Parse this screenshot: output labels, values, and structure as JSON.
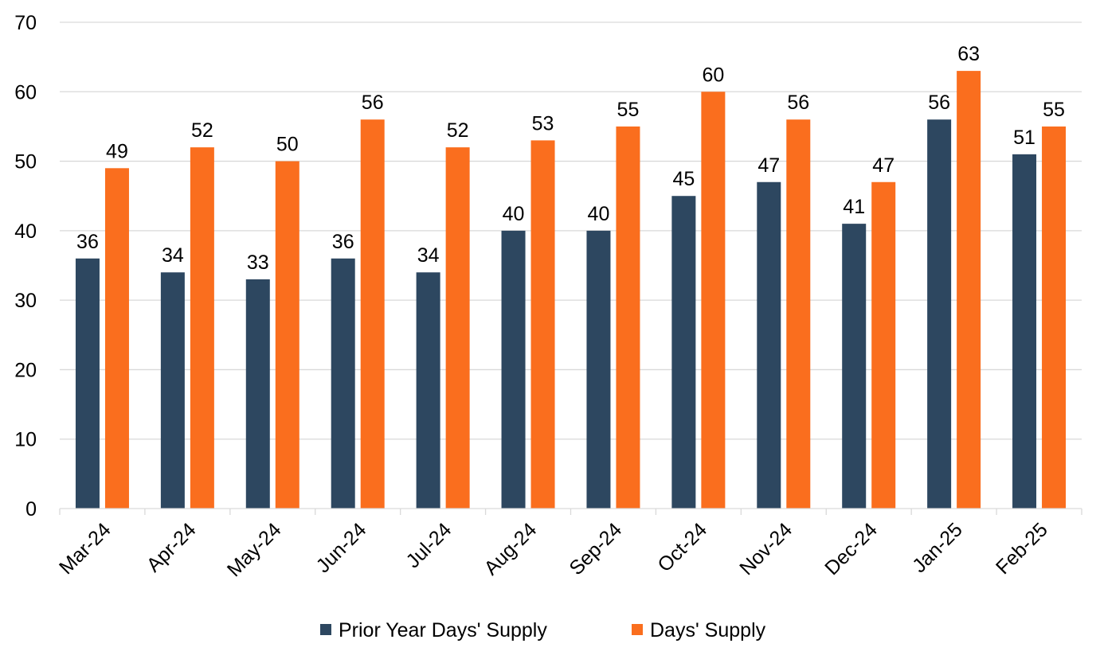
{
  "chart_data": {
    "type": "bar",
    "title": "",
    "xlabel": "",
    "ylabel": "",
    "ylim": [
      0,
      70
    ],
    "yticks": [
      0,
      10,
      20,
      30,
      40,
      50,
      60,
      70
    ],
    "grid": true,
    "legend_position": "bottom",
    "categories": [
      "Mar-24",
      "Apr-24",
      "May-24",
      "Jun-24",
      "Jul-24",
      "Aug-24",
      "Sep-24",
      "Oct-24",
      "Nov-24",
      "Dec-24",
      "Jan-25",
      "Feb-25"
    ],
    "series": [
      {
        "name": "Prior Year Days' Supply",
        "color": "#2d4760",
        "values": [
          36,
          34,
          33,
          36,
          34,
          40,
          40,
          45,
          47,
          41,
          56,
          51
        ]
      },
      {
        "name": "Days' Supply",
        "color": "#fa6e1e",
        "values": [
          49,
          52,
          50,
          56,
          52,
          53,
          55,
          60,
          56,
          47,
          63,
          55
        ]
      }
    ]
  }
}
